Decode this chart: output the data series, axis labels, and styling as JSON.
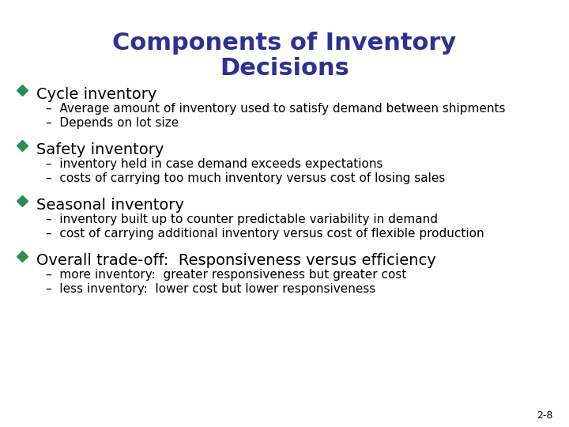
{
  "title_line1": "Components of Inventory",
  "title_line2": "Decisions",
  "title_color": "#2E3192",
  "title_fontsize": 22,
  "title_fontweight": "bold",
  "background_color": "#FFFFFF",
  "bullet_color": "#2E8B57",
  "bullet_text_color": "#000000",
  "sub_text_color": "#000000",
  "bullet_fontsize": 14,
  "sub_fontsize": 11,
  "page_number": "2-8",
  "figwidth": 7.2,
  "figheight": 5.4,
  "dpi": 100,
  "bullets": [
    {
      "text": "Cycle inventory",
      "subs": [
        "Average amount of inventory used to satisfy demand between shipments",
        "Depends on lot size"
      ]
    },
    {
      "text": "Safety inventory",
      "subs": [
        "inventory held in case demand exceeds expectations",
        "costs of carrying too much inventory versus cost of losing sales"
      ]
    },
    {
      "text": "Seasonal inventory",
      "subs": [
        "inventory built up to counter predictable variability in demand",
        "cost of carrying additional inventory versus cost of flexible production"
      ]
    },
    {
      "text": "Overall trade-off:  Responsiveness versus efficiency",
      "subs": [
        "more inventory:  greater responsiveness but greater cost",
        "less inventory:  lower cost but lower responsiveness"
      ]
    }
  ]
}
